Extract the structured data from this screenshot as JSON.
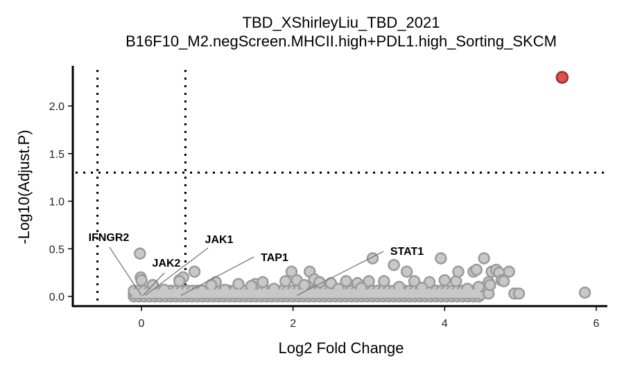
{
  "chart_data": {
    "type": "scatter",
    "title": "TBD_XShirleyLiu_TBD_2021",
    "subtitle": "B16F10_M2.negScreen.MHCII.high+PDL1.high_Sorting_SKCM",
    "xlabel": "Log2 Fold Change",
    "ylabel": "-Log10(Adjust.P)",
    "xlim": [
      -0.9,
      6.15
    ],
    "ylim": [
      -0.1,
      2.42
    ],
    "xticks": [
      0,
      2,
      4,
      6
    ],
    "yticks": [
      0.0,
      0.5,
      1.0,
      1.5,
      2.0
    ],
    "xtick_labels": [
      "0",
      "2",
      "4",
      "6"
    ],
    "ytick_labels": [
      "0.0",
      "0.5",
      "1.0",
      "1.5",
      "2.0"
    ],
    "thresholds": {
      "x": [
        -0.58,
        0.58
      ],
      "y": 1.3
    },
    "grid": false,
    "colors": {
      "significant": "#d9534f",
      "significant_stroke": "#a52a2a",
      "nonsignificant": "#c8c8c8",
      "nonsignificant_stroke": "#9a9a9a",
      "threshold_line": "#000000"
    },
    "highlighted": [
      {
        "x": 5.55,
        "y": 2.3
      }
    ],
    "points": [
      [
        -0.02,
        0.45
      ],
      [
        -0.01,
        0.2
      ],
      [
        0.0,
        0.17
      ],
      [
        0.15,
        0.12
      ],
      [
        0.5,
        0.17
      ],
      [
        0.55,
        0.2
      ],
      [
        0.5,
        0.16
      ],
      [
        0.7,
        0.26
      ],
      [
        0.98,
        0.15
      ],
      [
        0.92,
        0.12
      ],
      [
        1.28,
        0.13
      ],
      [
        1.5,
        0.13
      ],
      [
        1.6,
        0.15
      ],
      [
        1.45,
        0.11
      ],
      [
        1.98,
        0.26
      ],
      [
        1.9,
        0.16
      ],
      [
        2.05,
        0.17
      ],
      [
        2.22,
        0.26
      ],
      [
        2.28,
        0.18
      ],
      [
        2.35,
        0.15
      ],
      [
        2.15,
        0.12
      ],
      [
        2.5,
        0.14
      ],
      [
        2.7,
        0.16
      ],
      [
        2.85,
        0.14
      ],
      [
        3.0,
        0.16
      ],
      [
        3.05,
        0.4
      ],
      [
        3.2,
        0.16
      ],
      [
        3.33,
        0.33
      ],
      [
        3.5,
        0.26
      ],
      [
        3.6,
        0.16
      ],
      [
        3.8,
        0.15
      ],
      [
        3.95,
        0.4
      ],
      [
        4.0,
        0.17
      ],
      [
        4.15,
        0.16
      ],
      [
        4.18,
        0.26
      ],
      [
        4.38,
        0.26
      ],
      [
        4.42,
        0.28
      ],
      [
        4.52,
        0.4
      ],
      [
        4.58,
        0.15
      ],
      [
        4.62,
        0.26
      ],
      [
        4.68,
        0.28
      ],
      [
        4.72,
        0.25
      ],
      [
        4.75,
        0.17
      ],
      [
        4.78,
        0.16
      ],
      [
        4.85,
        0.26
      ],
      [
        4.48,
        0.02
      ],
      [
        4.58,
        0.03
      ],
      [
        4.92,
        0.03
      ],
      [
        4.98,
        0.03
      ],
      [
        5.85,
        0.04
      ],
      [
        4.3,
        0.08
      ],
      [
        4.45,
        0.1
      ],
      [
        4.6,
        0.12
      ],
      [
        3.7,
        0.09
      ],
      [
        3.4,
        0.1
      ],
      [
        2.9,
        0.09
      ],
      [
        2.6,
        0.08
      ],
      [
        1.75,
        0.08
      ],
      [
        1.1,
        0.07
      ],
      [
        0.8,
        0.06
      ],
      [
        0.3,
        0.07
      ]
    ],
    "dense_band": {
      "x_start": -0.1,
      "x_end": 4.45,
      "y_low": 0.0,
      "y_high": 0.06
    },
    "labels": [
      {
        "text": "IFNGR2",
        "x": 0.0,
        "y": 0.01
      },
      {
        "text": "JAK2",
        "x": 0.02,
        "y": 0.01
      },
      {
        "text": "JAK1",
        "x": 0.05,
        "y": 0.01
      },
      {
        "text": "TAP1",
        "x": 0.52,
        "y": 0.01
      },
      {
        "text": "STAT1",
        "x": 2.05,
        "y": 0.01
      }
    ]
  }
}
